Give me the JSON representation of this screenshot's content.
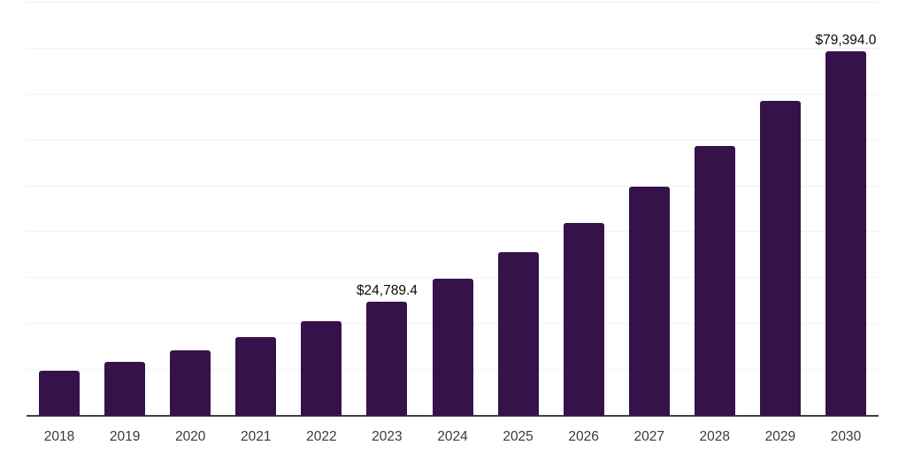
{
  "chart_data": {
    "type": "bar",
    "categories": [
      "2018",
      "2019",
      "2020",
      "2021",
      "2022",
      "2023",
      "2024",
      "2025",
      "2026",
      "2027",
      "2028",
      "2029",
      "2030"
    ],
    "values": [
      9900,
      11800,
      14200,
      17200,
      20700,
      24789.4,
      29900,
      35700,
      42000,
      49900,
      58800,
      68600,
      79394.0
    ],
    "data_labels": {
      "2023": "$24,789.4",
      "2030": "$79,394.0"
    },
    "ylim": [
      0,
      90000
    ],
    "gridline_step": 10000,
    "grid": true,
    "legend": "none",
    "colors": {
      "bar": "#36124B",
      "gridline": "#F2F2F2",
      "axis_line": "#3F3F3F",
      "tick_label": "#3A3A3A",
      "value_label": "#0A0A0A",
      "background": "#FFFFFF"
    }
  }
}
